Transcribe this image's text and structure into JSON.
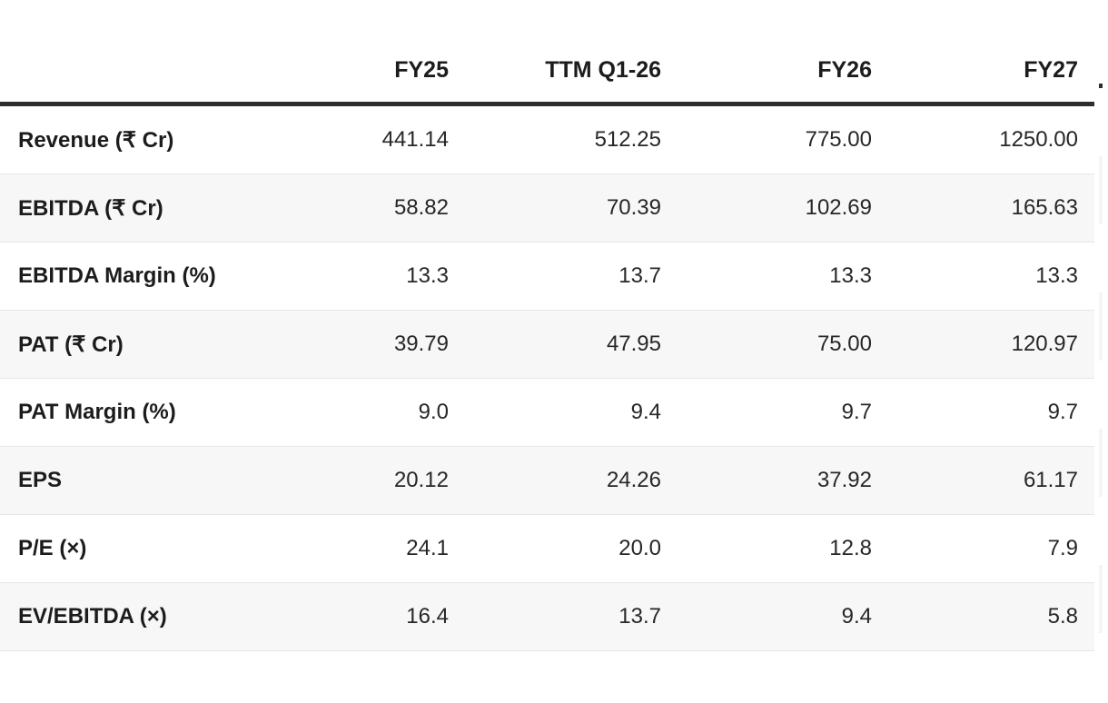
{
  "table": {
    "columns": {
      "label": "",
      "c1": "FY25",
      "c2": "TTM Q1-26",
      "c3": "FY26",
      "c4": "FY27"
    },
    "rows": [
      {
        "label": "Revenue (₹ Cr)",
        "values": [
          "441.14",
          "512.25",
          "775.00",
          "1250.00"
        ]
      },
      {
        "label": "EBITDA (₹ Cr)",
        "values": [
          "58.82",
          "70.39",
          "102.69",
          "165.63"
        ]
      },
      {
        "label": "EBITDA Margin (%)",
        "values": [
          "13.3",
          "13.7",
          "13.3",
          "13.3"
        ]
      },
      {
        "label": "PAT (₹ Cr)",
        "values": [
          "39.79",
          "47.95",
          "75.00",
          "120.97"
        ]
      },
      {
        "label": "PAT Margin (%)",
        "values": [
          "9.0",
          "9.4",
          "9.7",
          "9.7"
        ]
      },
      {
        "label": "EPS",
        "values": [
          "20.12",
          "24.26",
          "37.92",
          "61.17"
        ]
      },
      {
        "label": "P/E (×)",
        "values": [
          "24.1",
          "20.0",
          "12.8",
          "7.9"
        ]
      },
      {
        "label": "EV/EBITDA (×)",
        "values": [
          "16.4",
          "13.7",
          "9.4",
          "5.8"
        ]
      }
    ],
    "colors": {
      "header_border": "#2d2d2d",
      "row_divider": "#e6e6e6",
      "alt_row_bg": "#f7f7f7",
      "text": "#1f1f1f"
    }
  },
  "chart_data": {
    "type": "table",
    "title": "",
    "categories": [
      "FY25",
      "TTM Q1-26",
      "FY26",
      "FY27"
    ],
    "series": [
      {
        "name": "Revenue (₹ Cr)",
        "values": [
          441.14,
          512.25,
          775.0,
          1250.0
        ]
      },
      {
        "name": "EBITDA (₹ Cr)",
        "values": [
          58.82,
          70.39,
          102.69,
          165.63
        ]
      },
      {
        "name": "EBITDA Margin (%)",
        "values": [
          13.3,
          13.7,
          13.3,
          13.3
        ]
      },
      {
        "name": "PAT (₹ Cr)",
        "values": [
          39.79,
          47.95,
          75.0,
          120.97
        ]
      },
      {
        "name": "PAT Margin (%)",
        "values": [
          9.0,
          9.4,
          9.7,
          9.7
        ]
      },
      {
        "name": "EPS",
        "values": [
          20.12,
          24.26,
          37.92,
          61.17
        ]
      },
      {
        "name": "P/E (×)",
        "values": [
          24.1,
          20.0,
          12.8,
          7.9
        ]
      },
      {
        "name": "EV/EBITDA (×)",
        "values": [
          16.4,
          13.7,
          9.4,
          5.8
        ]
      }
    ],
    "layout": {
      "first_column": "metric labels",
      "numeric_alignment": "right",
      "striped_rows": true
    }
  }
}
